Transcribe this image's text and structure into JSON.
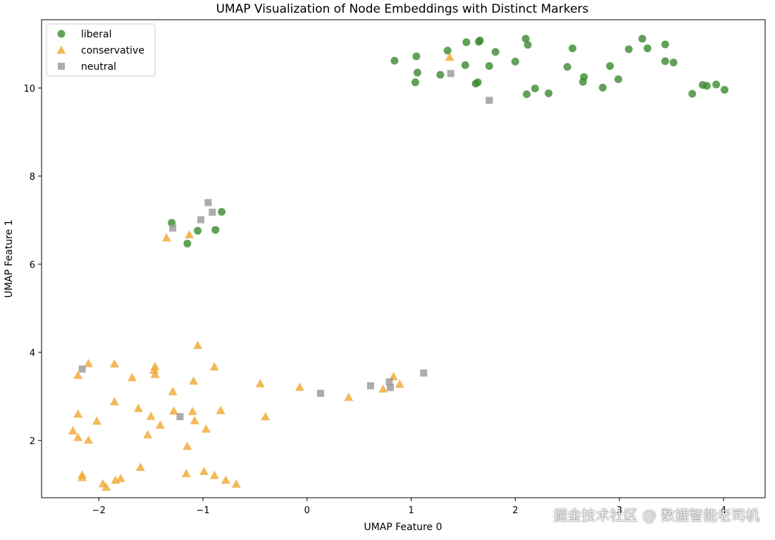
{
  "chart_data": {
    "type": "scatter",
    "title": "UMAP Visualization of Node Embeddings with Distinct Markers",
    "xlabel": "UMAP Feature 0",
    "ylabel": "UMAP Feature 1",
    "xlim": [
      -2.55,
      4.4
    ],
    "ylim": [
      0.7,
      11.55
    ],
    "xticks": [
      -2,
      -1,
      0,
      1,
      2,
      3,
      4
    ],
    "yticks": [
      2,
      4,
      6,
      8,
      10
    ],
    "grid": false,
    "legend_position": "top-left",
    "series": [
      {
        "name": "liberal",
        "marker": "circle",
        "color": "#3a8a2e",
        "points": [
          [
            -1.3,
            6.94
          ],
          [
            -1.15,
            6.47
          ],
          [
            -1.05,
            6.76
          ],
          [
            -0.88,
            6.78
          ],
          [
            -0.82,
            7.19
          ],
          [
            0.84,
            10.62
          ],
          [
            1.04,
            10.13
          ],
          [
            1.05,
            10.72
          ],
          [
            1.06,
            10.35
          ],
          [
            1.28,
            10.3
          ],
          [
            1.35,
            10.85
          ],
          [
            1.52,
            10.52
          ],
          [
            1.53,
            11.04
          ],
          [
            1.62,
            10.1
          ],
          [
            1.64,
            10.13
          ],
          [
            1.65,
            11.05
          ],
          [
            1.66,
            11.08
          ],
          [
            1.75,
            10.5
          ],
          [
            1.81,
            10.82
          ],
          [
            2.0,
            10.6
          ],
          [
            2.1,
            11.12
          ],
          [
            2.12,
            10.98
          ],
          [
            2.11,
            9.86
          ],
          [
            2.19,
            9.99
          ],
          [
            2.32,
            9.88
          ],
          [
            2.5,
            10.48
          ],
          [
            2.55,
            10.9
          ],
          [
            2.65,
            10.14
          ],
          [
            2.66,
            10.25
          ],
          [
            2.84,
            10.01
          ],
          [
            2.91,
            10.5
          ],
          [
            2.99,
            10.2
          ],
          [
            3.09,
            10.88
          ],
          [
            3.22,
            11.12
          ],
          [
            3.27,
            10.9
          ],
          [
            3.44,
            10.99
          ],
          [
            3.44,
            10.61
          ],
          [
            3.52,
            10.58
          ],
          [
            3.7,
            9.87
          ],
          [
            3.8,
            10.07
          ],
          [
            3.84,
            10.05
          ],
          [
            3.93,
            10.08
          ],
          [
            4.01,
            9.96
          ]
        ]
      },
      {
        "name": "conservative",
        "marker": "triangle",
        "color": "#f0a830",
        "points": [
          [
            -1.35,
            6.6
          ],
          [
            -1.13,
            6.67
          ],
          [
            -2.25,
            2.22
          ],
          [
            -2.2,
            2.6
          ],
          [
            -2.2,
            3.48
          ],
          [
            -2.2,
            2.07
          ],
          [
            -2.16,
            1.22
          ],
          [
            -2.16,
            1.16
          ],
          [
            -2.1,
            2.01
          ],
          [
            -2.1,
            3.75
          ],
          [
            -2.02,
            2.44
          ],
          [
            -1.96,
            1.02
          ],
          [
            -1.93,
            0.94
          ],
          [
            -1.85,
            3.74
          ],
          [
            -1.85,
            2.88
          ],
          [
            -1.84,
            1.1
          ],
          [
            -1.79,
            1.14
          ],
          [
            -1.68,
            3.43
          ],
          [
            -1.62,
            2.73
          ],
          [
            -1.6,
            1.39
          ],
          [
            -1.53,
            2.13
          ],
          [
            -1.5,
            2.55
          ],
          [
            -1.47,
            3.6
          ],
          [
            -1.46,
            3.68
          ],
          [
            -1.46,
            3.5
          ],
          [
            -1.41,
            2.35
          ],
          [
            -1.29,
            3.11
          ],
          [
            -1.28,
            2.67
          ],
          [
            -1.16,
            1.25
          ],
          [
            -1.15,
            1.87
          ],
          [
            -1.1,
            2.66
          ],
          [
            -1.09,
            3.35
          ],
          [
            -1.08,
            2.45
          ],
          [
            -1.05,
            4.16
          ],
          [
            -0.99,
            1.3
          ],
          [
            -0.97,
            2.26
          ],
          [
            -0.89,
            3.67
          ],
          [
            -0.89,
            1.21
          ],
          [
            -0.83,
            2.68
          ],
          [
            -0.78,
            1.1
          ],
          [
            -0.68,
            1.01
          ],
          [
            -0.45,
            3.29
          ],
          [
            -0.4,
            2.54
          ],
          [
            -0.07,
            3.21
          ],
          [
            0.4,
            2.98
          ],
          [
            0.73,
            3.17
          ],
          [
            0.83,
            3.45
          ],
          [
            0.89,
            3.28
          ],
          [
            1.37,
            10.7
          ]
        ]
      },
      {
        "name": "neutral",
        "marker": "square",
        "color": "#979797",
        "points": [
          [
            -1.29,
            6.82
          ],
          [
            -1.02,
            7.01
          ],
          [
            -0.95,
            7.4
          ],
          [
            -0.91,
            7.18
          ],
          [
            -2.16,
            3.62
          ],
          [
            -1.22,
            2.54
          ],
          [
            0.13,
            3.07
          ],
          [
            0.61,
            3.24
          ],
          [
            0.79,
            3.33
          ],
          [
            0.8,
            3.2
          ],
          [
            1.12,
            3.53
          ],
          [
            1.38,
            10.33
          ],
          [
            1.75,
            9.72
          ]
        ]
      }
    ]
  },
  "watermark": "掘金技术社区 @ 数据智能老司机"
}
